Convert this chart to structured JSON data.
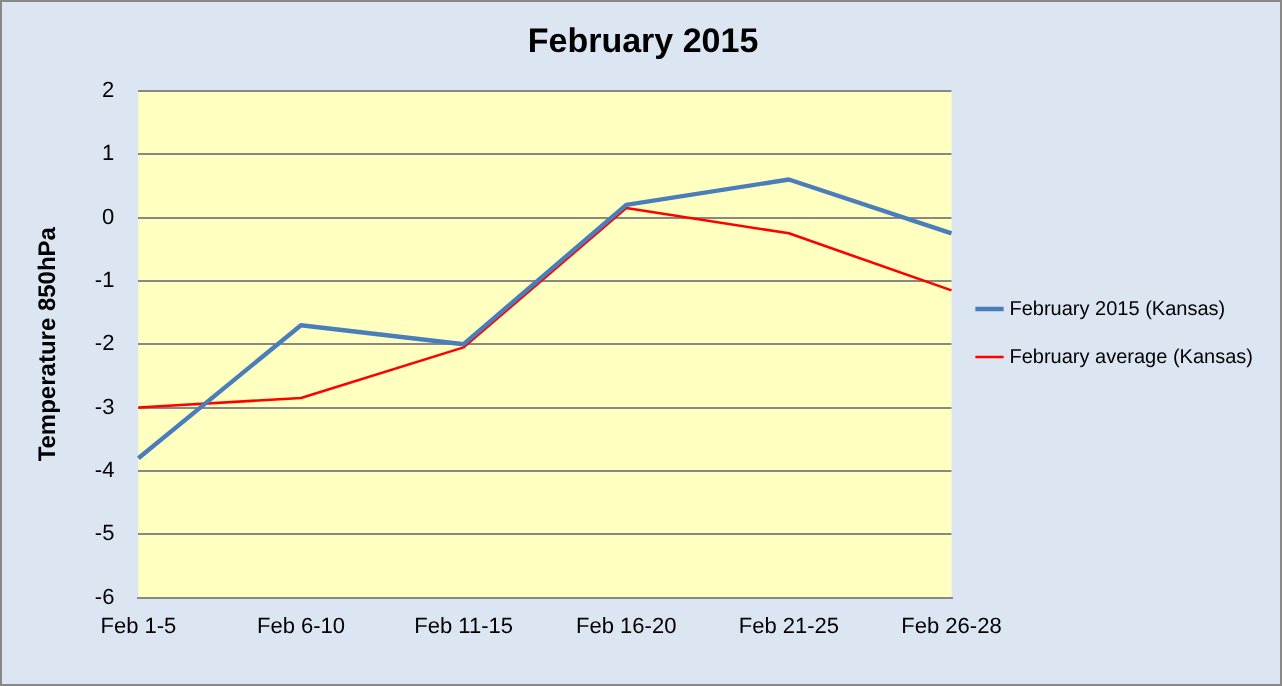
{
  "chart_data": {
    "type": "line",
    "title": "February 2015",
    "ylabel": "Temperature 850hPa",
    "categories": [
      "Feb 1-5",
      "Feb 6-10",
      "Feb 11-15",
      "Feb 16-20",
      "Feb 21-25",
      "Feb 26-28"
    ],
    "series": [
      {
        "name": "February 2015 (Kansas)",
        "color": "#4a7ebb",
        "values": [
          -3.8,
          -1.7,
          -2.0,
          0.2,
          0.6,
          -0.25
        ]
      },
      {
        "name": "February average (Kansas)",
        "color": "#ff0000",
        "values": [
          -3.0,
          -2.85,
          -2.05,
          0.15,
          -0.25,
          -1.15
        ]
      }
    ],
    "ylim": [
      -6,
      2
    ],
    "yticks": [
      -6,
      -5,
      -4,
      -3,
      -2,
      -1,
      0,
      1,
      2
    ],
    "grid": "y",
    "legend": "right",
    "marker": "none",
    "line_style": "solid"
  }
}
